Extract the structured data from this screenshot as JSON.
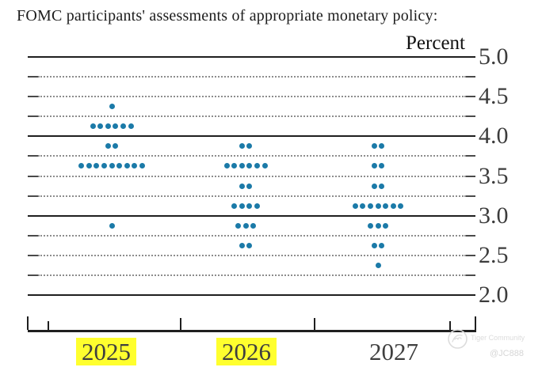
{
  "title": "FOMC participants' assessments of appropriate monetary policy:",
  "chart_data": {
    "type": "scatter",
    "subtype": "fomc-dot-plot",
    "title": "FOMC participants' assessments of appropriate monetary policy:",
    "unit_label": "Percent",
    "ylim": [
      2.0,
      5.0
    ],
    "grid": "horizontal",
    "yticks": [
      {
        "label": "5.0",
        "value": 5.0
      },
      {
        "label": "4.5",
        "value": 4.5
      },
      {
        "label": "4.0",
        "value": 4.0
      },
      {
        "label": "3.5",
        "value": 3.5
      },
      {
        "label": "3.0",
        "value": 3.0
      },
      {
        "label": "2.5",
        "value": 2.5
      },
      {
        "label": "2.0",
        "value": 2.0
      }
    ],
    "solid_gridlines": [
      5.0,
      4.0,
      3.0,
      2.0
    ],
    "dotted_gridlines": [
      4.75,
      4.5,
      4.25,
      3.75,
      3.5,
      3.25,
      2.75,
      2.5,
      2.25
    ],
    "categories": [
      "2025",
      "2026",
      "2027"
    ],
    "highlighted_categories": [
      "2025",
      "2026"
    ],
    "series": [
      {
        "year": "2025",
        "highlighted": true,
        "dots": [
          {
            "rate": 4.375,
            "count": 1
          },
          {
            "rate": 4.125,
            "count": 6
          },
          {
            "rate": 3.875,
            "count": 2
          },
          {
            "rate": 3.625,
            "count": 9
          },
          {
            "rate": 2.875,
            "count": 1
          }
        ]
      },
      {
        "year": "2026",
        "highlighted": true,
        "dots": [
          {
            "rate": 3.875,
            "count": 2
          },
          {
            "rate": 3.625,
            "count": 6
          },
          {
            "rate": 3.375,
            "count": 2
          },
          {
            "rate": 3.125,
            "count": 4
          },
          {
            "rate": 2.875,
            "count": 3
          },
          {
            "rate": 2.625,
            "count": 2
          }
        ]
      },
      {
        "year": "2027",
        "highlighted": false,
        "dots": [
          {
            "rate": 3.875,
            "count": 2
          },
          {
            "rate": 3.625,
            "count": 2
          },
          {
            "rate": 3.375,
            "count": 2
          },
          {
            "rate": 3.125,
            "count": 7
          },
          {
            "rate": 2.875,
            "count": 3
          },
          {
            "rate": 2.625,
            "count": 2
          },
          {
            "rate": 2.375,
            "count": 1
          }
        ]
      }
    ],
    "dot_color": "#1b7aa8",
    "highlight_color": "#ffff2e"
  },
  "watermark": {
    "brand": "Tiger Community",
    "handle": "@JC888"
  }
}
